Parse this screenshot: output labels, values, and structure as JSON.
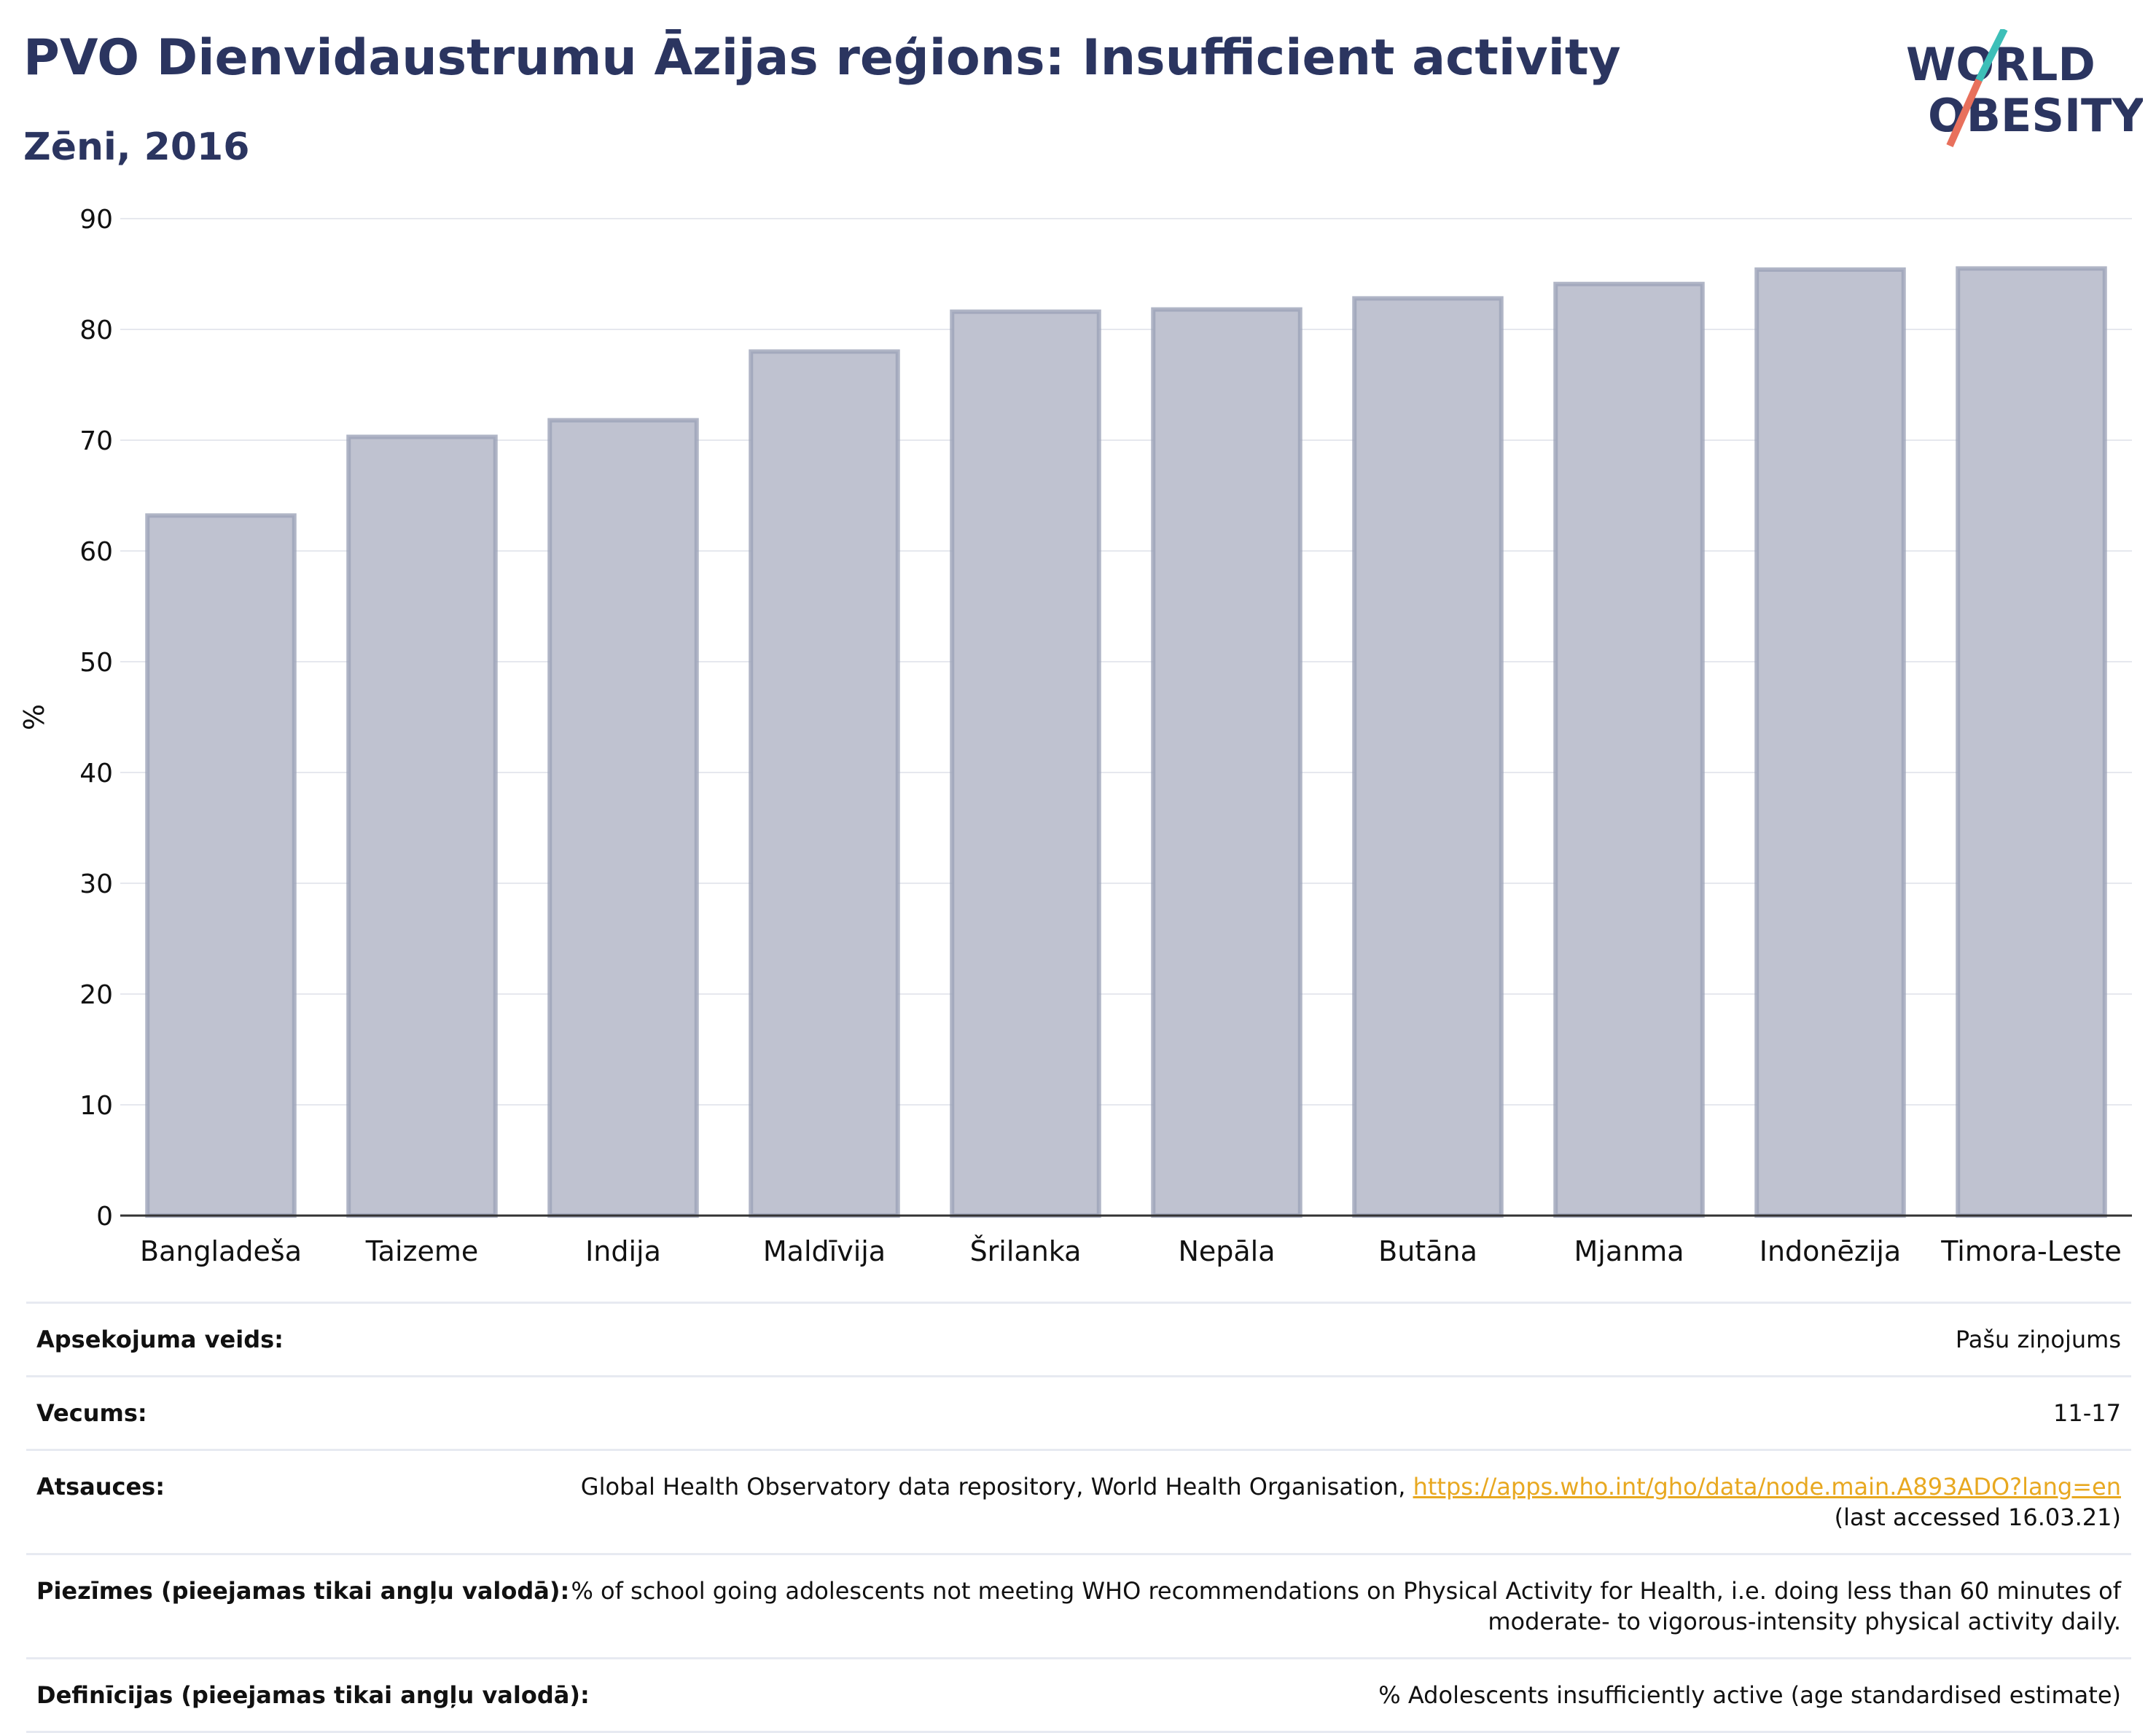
{
  "header": {
    "title": "PVO Dienvidaustrumu Āzijas reģions: Insufficient activity",
    "subtitle": "Zēni, 2016",
    "logo_line1": "WORLD",
    "logo_line2": "OBESITY"
  },
  "chart_data": {
    "type": "bar",
    "categories": [
      "Bangladeša",
      "Taizeme",
      "Indija",
      "Maldīvija",
      "Šrilanka",
      "Nepāla",
      "Butāna",
      "Mjanma",
      "Indonēzija",
      "Timora-Leste"
    ],
    "values": [
      63.2,
      70.3,
      71.8,
      78.0,
      81.6,
      81.8,
      82.8,
      84.1,
      85.4,
      85.5
    ],
    "ylabel": "%",
    "ylim": [
      0,
      90
    ],
    "yticks": [
      0,
      10,
      20,
      30,
      40,
      50,
      60,
      70,
      80,
      90
    ],
    "grid": true,
    "bar_color": "#bfc2d0",
    "bar_edge_color": "#9ca2b8"
  },
  "meta": {
    "survey_label": "Apsekojuma veids:",
    "survey_value": "Pašu ziņojums",
    "age_label": "Vecums:",
    "age_value": "11-17",
    "refs_label": "Atsauces:",
    "refs_text": "Global Health Observatory data repository, World Health Organisation, ",
    "refs_link": "https://apps.who.int/gho/data/node.main.A893ADO?lang=en",
    "refs_accessed": "(last accessed 16.03.21)",
    "notes_label": "Piezīmes (pieejamas tikai angļu valodā):",
    "notes_value": "% of school going adolescents not meeting WHO recommendations on Physical Activity for Health, i.e. doing less than 60 minutes of moderate- to vigorous-intensity physical activity daily.",
    "defs_label": "Definīcijas (pieejamas tikai angļu valodā):",
    "defs_value": "% Adolescents insufficiently active (age standardised estimate)"
  }
}
